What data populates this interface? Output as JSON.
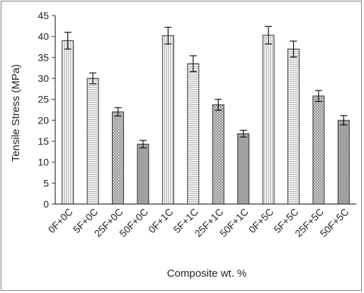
{
  "chart_data": {
    "type": "bar",
    "ylabel": "Tensile Stress (MPa)",
    "xlabel": "Composite wt. %",
    "ylim": [
      0,
      45
    ],
    "yticks": [
      0,
      5,
      10,
      15,
      20,
      25,
      30,
      35,
      40,
      45
    ],
    "grid": false,
    "legend": "none",
    "categories": [
      "0F+0C",
      "5F+0C",
      "25F+0C",
      "50F+0C",
      "0F+1C",
      "5F+1C",
      "25F+1C",
      "50F+1C",
      "0F+5C",
      "5F+5C",
      "25F+5C",
      "50F+5C"
    ],
    "values": [
      39.0,
      30.0,
      22.0,
      14.3,
      40.2,
      33.5,
      23.7,
      16.8,
      40.3,
      37.0,
      25.8,
      20.0
    ],
    "errors": [
      2.0,
      1.3,
      1.0,
      0.9,
      2.0,
      1.9,
      1.3,
      0.8,
      2.1,
      1.9,
      1.3,
      1.1
    ],
    "patterns": [
      "vertical",
      "horizontal",
      "cross",
      "dots",
      "vertical",
      "horizontal",
      "cross",
      "dots",
      "vertical",
      "horizontal",
      "cross",
      "dots"
    ],
    "colors": {
      "dots_fill": "#a6a6a6",
      "bar_stroke": "#333333",
      "axis": "#333333"
    }
  }
}
